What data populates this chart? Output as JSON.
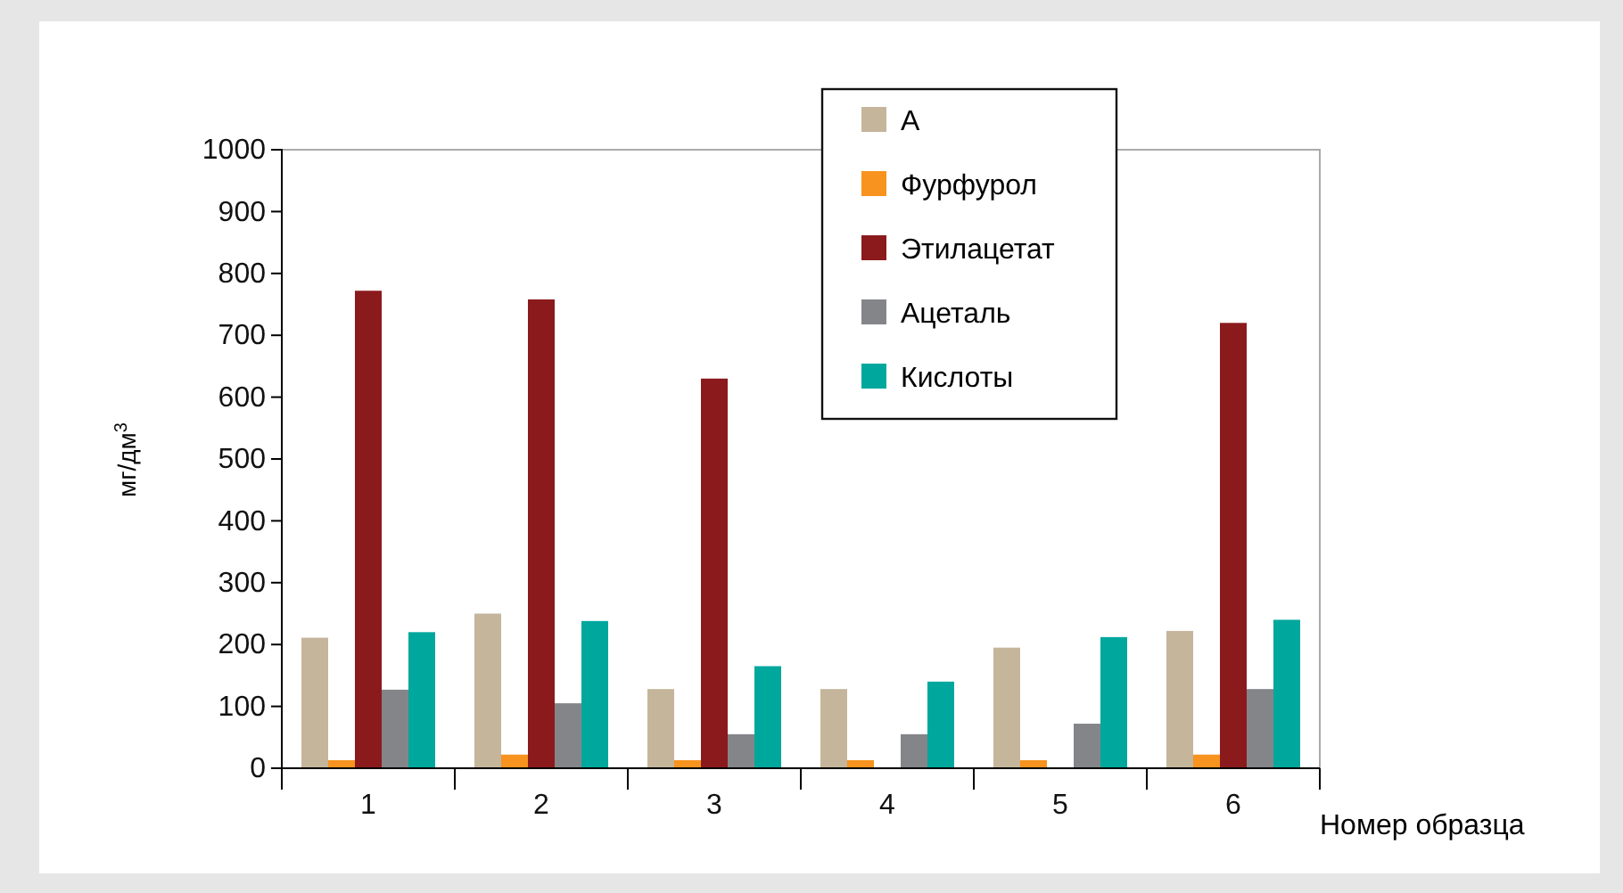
{
  "chart_data": {
    "type": "bar",
    "xlabel": "Номер образца",
    "ylabel": "мг/дм$^{3}$",
    "categories": [
      "1",
      "2",
      "3",
      "4",
      "5",
      "6"
    ],
    "series": [
      {
        "name": "А",
        "color": "#c4b59b",
        "values": [
          211,
          250,
          128,
          128,
          195,
          222
        ]
      },
      {
        "name": "Фурфурол",
        "color": "#f7931e",
        "values": [
          13,
          22,
          13,
          13,
          13,
          22
        ]
      },
      {
        "name": "Этилацетат",
        "color": "#8b1a1d",
        "values": [
          772,
          758,
          630,
          null,
          null,
          720
        ]
      },
      {
        "name": "Ацеталь",
        "color": "#848589",
        "values": [
          127,
          105,
          55,
          55,
          72,
          128
        ]
      },
      {
        "name": "Кислоты",
        "color": "#00a79d",
        "values": [
          220,
          238,
          165,
          140,
          212,
          240
        ]
      }
    ],
    "ylim": [
      0,
      1000
    ],
    "yticks": [
      0,
      100,
      200,
      300,
      400,
      500,
      600,
      700,
      800,
      900,
      1000
    ],
    "legend": "top"
  }
}
